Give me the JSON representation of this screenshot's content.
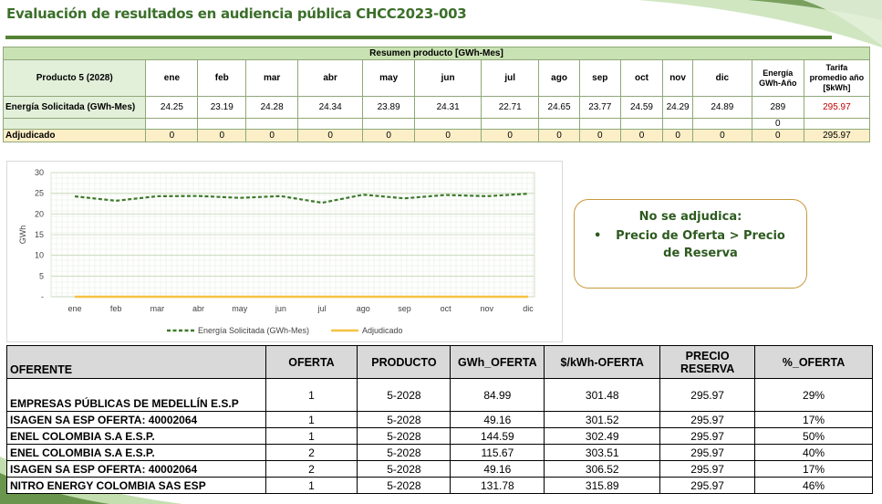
{
  "title": "Evaluación de resultados en audiencia pública CHCC2023-003",
  "summary": {
    "caption": "Resumen producto [GWh-Mes]",
    "product_label": "Producto 5 (2028)",
    "months": [
      "ene",
      "feb",
      "mar",
      "abr",
      "may",
      "jun",
      "jul",
      "ago",
      "sep",
      "oct",
      "nov",
      "dic"
    ],
    "energy_year_label": "Energía GWh-Año",
    "tariff_label": "Tarifa promedio año [$kWh]",
    "solicitada_label": "Energía Solicitada (GWh-Mes)",
    "solicitada_values": [
      "24.25",
      "23.19",
      "24.28",
      "24.34",
      "23.89",
      "24.31",
      "22.71",
      "24.65",
      "23.77",
      "24.59",
      "24.29",
      "24.89"
    ],
    "solicitada_year": "289",
    "solicitada_tariff": "295.97",
    "blank_year": "0",
    "adjudicado_label": "Adjudicado",
    "adjudicado_values": [
      "0",
      "0",
      "0",
      "0",
      "0",
      "0",
      "0",
      "0",
      "0",
      "0",
      "0",
      "0"
    ],
    "adjudicado_year": "0",
    "adjudicado_tariff": "295.97"
  },
  "chart_data": {
    "type": "line",
    "categories": [
      "ene",
      "feb",
      "mar",
      "abr",
      "may",
      "jun",
      "jul",
      "ago",
      "sep",
      "oct",
      "nov",
      "dic"
    ],
    "series": [
      {
        "name": "Energía Solicitada (GWh-Mes)",
        "values": [
          24.25,
          23.19,
          24.28,
          24.34,
          23.89,
          24.31,
          22.71,
          24.65,
          23.77,
          24.59,
          24.29,
          24.89
        ],
        "color": "#3d7a2b",
        "style": "dashed"
      },
      {
        "name": "Adjudicado",
        "values": [
          0,
          0,
          0,
          0,
          0,
          0,
          0,
          0,
          0,
          0,
          0,
          0
        ],
        "color": "#f5c242",
        "style": "solid"
      }
    ],
    "ylabel": "GWh",
    "ylim": [
      0,
      30
    ],
    "yticks": [
      "30",
      "25",
      "20",
      "15",
      "10",
      "5",
      "-"
    ],
    "grid": true,
    "legend": "bottom"
  },
  "callout": {
    "title": "No se adjudica:",
    "item": "Precio de Oferta > Precio de Reserva",
    "bullet": "•"
  },
  "offers": {
    "headers": [
      "OFERENTE",
      "OFERTA",
      "PRODUCTO",
      "GWh_OFERTA",
      "$/kWh-OFERTA",
      "PRECIO RESERVA",
      "%_OFERTA"
    ],
    "rows": [
      {
        "oferente": "EMPRESAS PÚBLICAS DE MEDELLÍN E.S.P",
        "oferta": "1",
        "producto": "5-2028",
        "gwh": "84.99",
        "kwh": "301.48",
        "reserva": "295.97",
        "pct": "29%"
      },
      {
        "oferente": "ISAGEN SA ESP    OFERTA: 40002064",
        "oferta": "1",
        "producto": "5-2028",
        "gwh": "49.16",
        "kwh": "301.52",
        "reserva": "295.97",
        "pct": "17%"
      },
      {
        "oferente": "ENEL COLOMBIA S.A E.S.P.",
        "oferta": "1",
        "producto": "5-2028",
        "gwh": "144.59",
        "kwh": "302.49",
        "reserva": "295.97",
        "pct": "50%"
      },
      {
        "oferente": "ENEL COLOMBIA S.A E.S.P.",
        "oferta": "2",
        "producto": "5-2028",
        "gwh": "115.67",
        "kwh": "303.51",
        "reserva": "295.97",
        "pct": "40%"
      },
      {
        "oferente": "ISAGEN SA ESP    OFERTA: 40002064",
        "oferta": "2",
        "producto": "5-2028",
        "gwh": "49.16",
        "kwh": "306.52",
        "reserva": "295.97",
        "pct": "17%"
      },
      {
        "oferente": "NITRO ENERGY COLOMBIA SAS ESP",
        "oferta": "1",
        "producto": "5-2028",
        "gwh": "131.78",
        "kwh": "315.89",
        "reserva": "295.97",
        "pct": "46%"
      }
    ]
  },
  "colors": {
    "accent_green": "#548235",
    "title_green": "#3b6f2a",
    "header_green": "#c9e2b3",
    "adjudicado_bg": "#fcefc7",
    "tariff_red": "#c00000"
  }
}
